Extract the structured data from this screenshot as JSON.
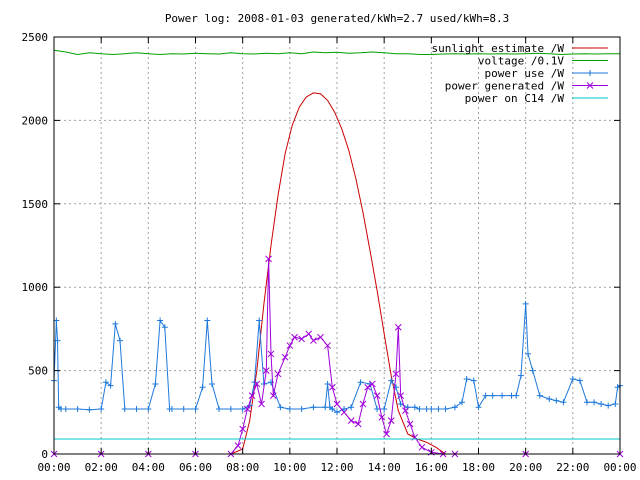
{
  "chart_data": {
    "type": "line",
    "title": "Power log: 2008-01-03 generated/kWh=2.7 used/kWh=8.3",
    "xlabel": "",
    "ylabel": "",
    "xlim": [
      0,
      24
    ],
    "ylim": [
      0,
      2500
    ],
    "grid": true,
    "legend_position": "top-right",
    "x_tick_labels": [
      "00:00",
      "02:00",
      "04:00",
      "06:00",
      "08:00",
      "10:00",
      "12:00",
      "14:00",
      "16:00",
      "18:00",
      "20:00",
      "22:00",
      "00:00"
    ],
    "y_tick_labels": [
      "0",
      "500",
      "1000",
      "1500",
      "2000",
      "2500"
    ],
    "series": [
      {
        "name": "sunlight estimate /W",
        "color": "#cc0000",
        "marker": "none",
        "x": [
          0,
          7.5,
          8.0,
          8.3,
          8.6,
          8.9,
          9.2,
          9.5,
          9.8,
          10.1,
          10.4,
          10.7,
          11.0,
          11.3,
          11.6,
          11.9,
          12.2,
          12.5,
          12.8,
          13.1,
          13.4,
          13.7,
          14.0,
          14.3,
          14.6,
          15.0,
          15.4,
          15.8,
          16.2,
          16.6,
          17.0,
          24
        ],
        "y": [
          0,
          0,
          30,
          200,
          500,
          900,
          1250,
          1550,
          1800,
          1970,
          2080,
          2140,
          2165,
          2160,
          2120,
          2050,
          1950,
          1820,
          1650,
          1450,
          1220,
          980,
          720,
          470,
          260,
          120,
          90,
          70,
          40,
          0,
          0,
          0
        ]
      },
      {
        "name": "voltage /0.1V",
        "color": "#00a000",
        "marker": "none",
        "x": [
          0,
          0.5,
          1,
          1.5,
          2,
          2.5,
          3,
          3.5,
          4,
          4.5,
          5,
          5.5,
          6,
          6.5,
          7,
          7.5,
          8,
          8.5,
          9,
          9.5,
          10,
          10.5,
          11,
          11.5,
          12,
          12.5,
          13,
          13.5,
          14,
          14.5,
          15,
          15.5,
          16,
          16.5,
          17,
          17.5,
          18,
          18.5,
          19,
          19.5,
          20,
          20.5,
          21,
          21.5,
          22,
          22.5,
          23,
          23.5,
          24
        ],
        "y": [
          2420,
          2410,
          2395,
          2405,
          2400,
          2395,
          2400,
          2405,
          2400,
          2395,
          2400,
          2398,
          2402,
          2400,
          2398,
          2405,
          2400,
          2398,
          2402,
          2400,
          2405,
          2400,
          2410,
          2405,
          2408,
          2402,
          2405,
          2410,
          2405,
          2400,
          2400,
          2395,
          2395,
          2398,
          2400,
          2398,
          2400,
          2398,
          2400,
          2398,
          2400,
          2402,
          2400,
          2395,
          2398,
          2400,
          2398,
          2400,
          2400
        ]
      },
      {
        "name": "power use /W",
        "color": "#1e78dc",
        "marker": "+",
        "x": [
          0,
          0.1,
          0.15,
          0.2,
          0.3,
          0.5,
          1,
          1.5,
          2,
          2.2,
          2.4,
          2.6,
          2.8,
          3,
          3.5,
          4,
          4.3,
          4.5,
          4.7,
          4.9,
          5,
          5.5,
          6,
          6.3,
          6.5,
          6.7,
          7,
          7.5,
          8,
          8.3,
          8.5,
          8.7,
          8.9,
          9.2,
          9.6,
          10,
          10.5,
          11,
          11.5,
          11.6,
          11.7,
          11.8,
          12,
          12.3,
          12.6,
          13,
          13.4,
          13.7,
          14,
          14.3,
          14.5,
          14.7,
          15,
          15.3,
          15.5,
          15.8,
          16,
          16.3,
          16.6,
          17,
          17.3,
          17.5,
          17.8,
          18,
          18.3,
          18.6,
          19,
          19.4,
          19.6,
          19.8,
          20,
          20.1,
          20.3,
          20.6,
          21,
          21.3,
          21.6,
          22,
          22.3,
          22.6,
          22.9,
          23.2,
          23.5,
          23.8,
          23.9,
          24
        ],
        "y": [
          440,
          800,
          680,
          280,
          270,
          270,
          270,
          265,
          270,
          430,
          410,
          780,
          680,
          270,
          270,
          270,
          420,
          800,
          760,
          270,
          270,
          270,
          270,
          400,
          800,
          420,
          270,
          270,
          270,
          290,
          430,
          800,
          420,
          430,
          280,
          270,
          270,
          280,
          280,
          420,
          280,
          270,
          250,
          270,
          280,
          430,
          420,
          270,
          270,
          440,
          400,
          300,
          280,
          280,
          270,
          270,
          270,
          270,
          270,
          280,
          310,
          450,
          440,
          280,
          350,
          350,
          350,
          350,
          350,
          470,
          900,
          600,
          500,
          350,
          330,
          320,
          310,
          450,
          440,
          310,
          310,
          300,
          290,
          300,
          400,
          410
        ]
      },
      {
        "name": "power generated /W",
        "color": "#a000dc",
        "marker": "x",
        "x": [
          0,
          2,
          4,
          6,
          7.5,
          7.8,
          8.0,
          8.2,
          8.4,
          8.6,
          8.8,
          9.0,
          9.1,
          9.2,
          9.3,
          9.5,
          9.8,
          10.0,
          10.2,
          10.5,
          10.8,
          11.0,
          11.3,
          11.6,
          11.8,
          12.0,
          12.3,
          12.6,
          12.9,
          13.1,
          13.3,
          13.5,
          13.7,
          13.9,
          14.1,
          14.3,
          14.5,
          14.6,
          14.7,
          14.9,
          15.1,
          15.3,
          15.6,
          16.0,
          16.5,
          17,
          20,
          24
        ],
        "y": [
          0,
          0,
          0,
          0,
          0,
          50,
          150,
          270,
          350,
          420,
          300,
          500,
          1170,
          600,
          350,
          480,
          580,
          650,
          700,
          690,
          720,
          680,
          700,
          650,
          400,
          300,
          250,
          200,
          180,
          300,
          400,
          420,
          350,
          220,
          120,
          200,
          480,
          760,
          350,
          260,
          180,
          100,
          40,
          10,
          0,
          0,
          0,
          0
        ]
      },
      {
        "name": "power on C14 /W",
        "color": "#00c8c8",
        "marker": "none",
        "x": [
          0,
          24
        ],
        "y": [
          90,
          90
        ]
      }
    ]
  }
}
